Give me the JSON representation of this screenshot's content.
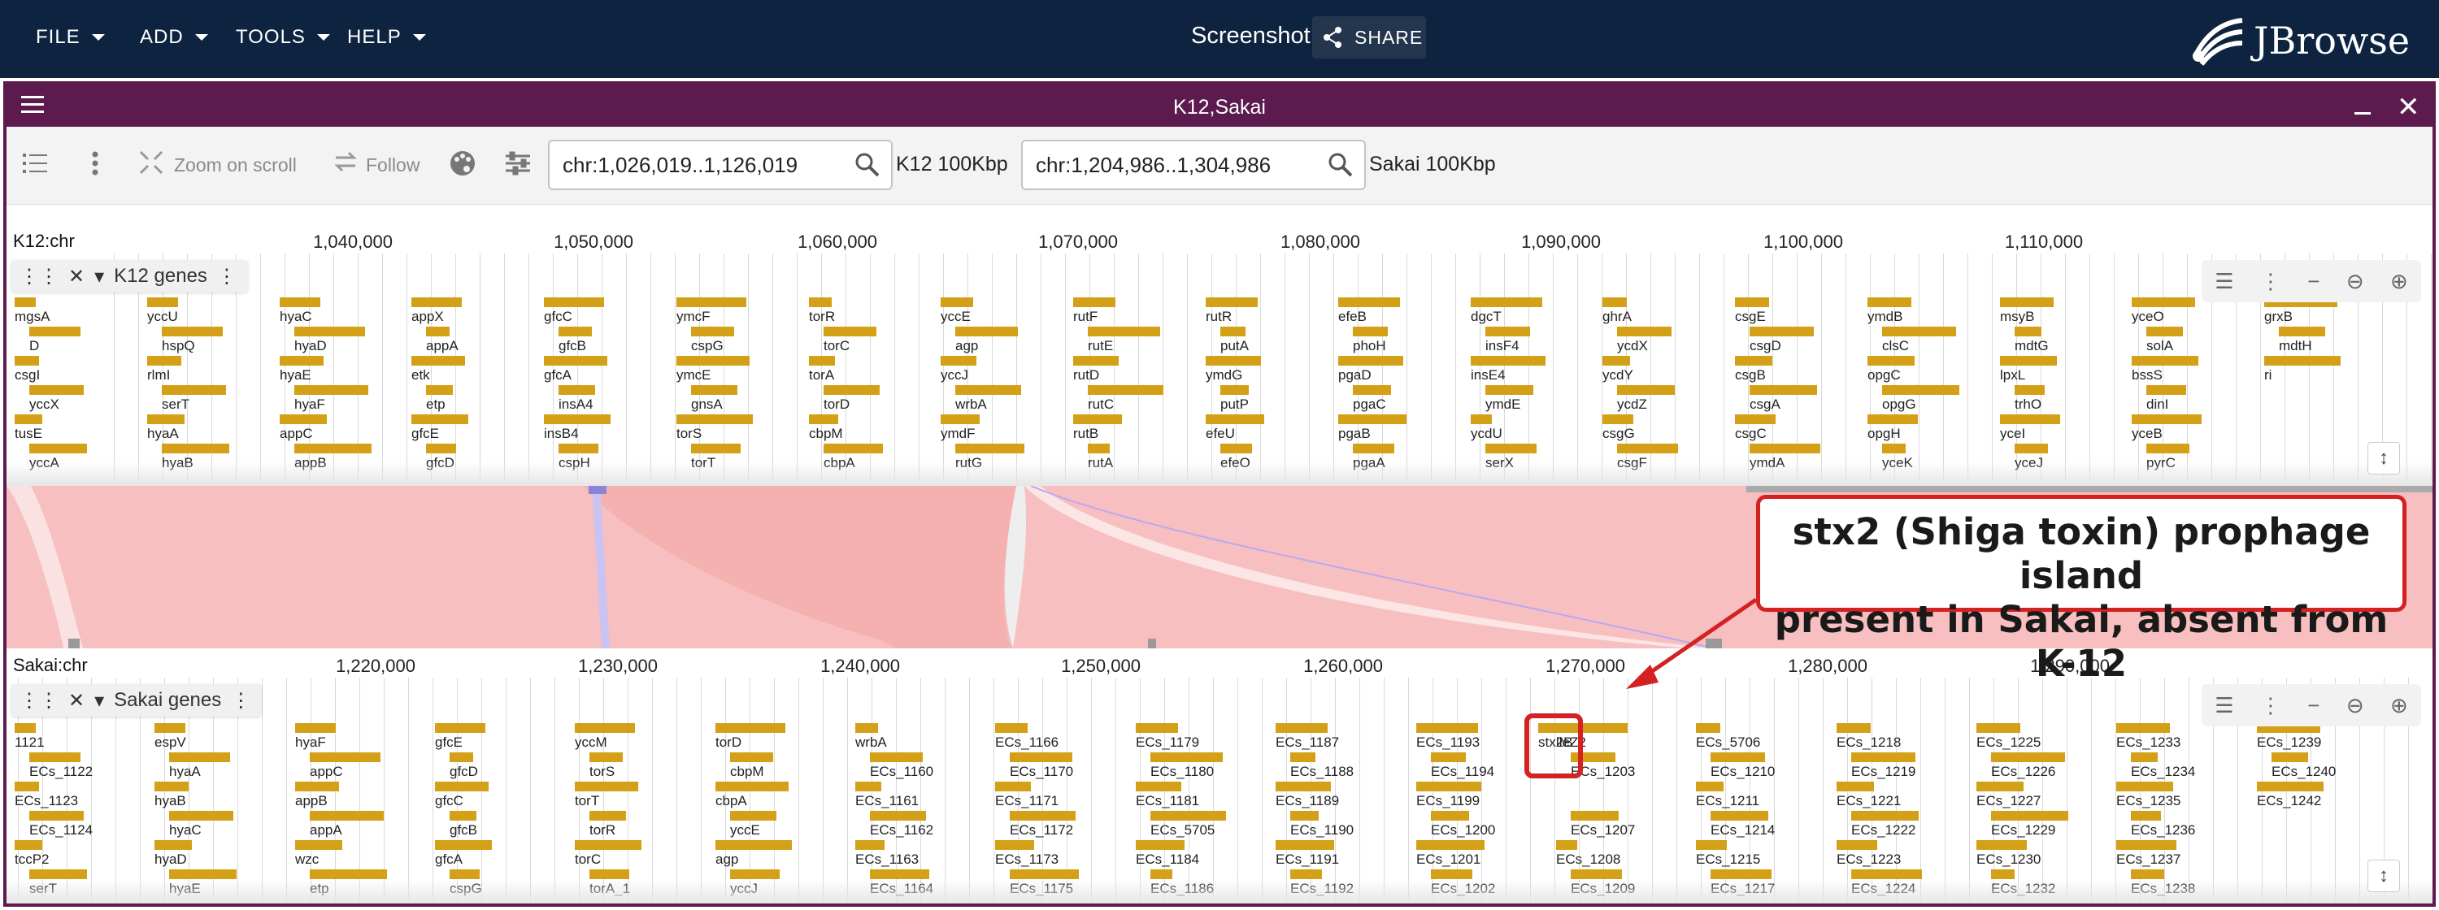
{
  "appbar": {
    "menus": [
      "FILE",
      "ADD",
      "TOOLS",
      "HELP"
    ],
    "session_title": "Screenshot",
    "share_label": "SHARE",
    "logo_text": "JBrowse"
  },
  "view": {
    "title": "K12,Sakai",
    "toolbar": {
      "zoom_on_scroll": "Zoom on scroll",
      "follow": "Follow",
      "top_location": "chr:1,026,019..1,126,019",
      "top_assembly": "K12 100Kbp",
      "bottom_location": "chr:1,204,986..1,304,986",
      "bottom_assembly": "Sakai 100Kbp"
    }
  },
  "top_ruler": {
    "name": "K12:chr",
    "ticks": [
      "1,040,000",
      "1,050,000",
      "1,060,000",
      "1,070,000",
      "1,080,000",
      "1,090,000",
      "1,100,000",
      "1,110,000"
    ]
  },
  "top_track": {
    "label": "K12 genes",
    "genes": [
      "mgsA",
      "D",
      "csgI",
      "yccX",
      "tusE",
      "yccA",
      "yccU",
      "hspQ",
      "rlmI",
      "serT",
      "hyaA",
      "hyaB",
      "hyaC",
      "hyaD",
      "hyaE",
      "hyaF",
      "appC",
      "appB",
      "appX",
      "appA",
      "etk",
      "etp",
      "gfcE",
      "gfcD",
      "gfcC",
      "gfcB",
      "gfcA",
      "insA4",
      "insB4",
      "cspH",
      "ymcF",
      "cspG",
      "ymcE",
      "gnsA",
      "torS",
      "torT",
      "torR",
      "torC",
      "torA",
      "torD",
      "cbpM",
      "cbpA",
      "yccE",
      "agp",
      "yccJ",
      "wrbA",
      "ymdF",
      "rutG",
      "rutF",
      "rutE",
      "rutD",
      "rutC",
      "rutB",
      "rutA",
      "rutR",
      "putA",
      "ymdG",
      "putP",
      "efeU",
      "efeO",
      "efeB",
      "phoH",
      "pgaD",
      "pgaC",
      "pgaB",
      "pgaA",
      "dgcT",
      "insF4",
      "insE4",
      "ymdE",
      "ycdU",
      "serX",
      "ghrA",
      "ycdX",
      "ycdY",
      "ycdZ",
      "csgG",
      "csgF",
      "csgE",
      "csgD",
      "csgB",
      "csgA",
      "csgC",
      "ymdA",
      "ymdB",
      "clsC",
      "opgC",
      "opgG",
      "opgH",
      "yceK",
      "msyB",
      "mdtG",
      "lpxL",
      "trhO",
      "yceI",
      "yceJ",
      "yceO",
      "solA",
      "bssS",
      "dinI",
      "yceB",
      "pyrC",
      "grxB",
      "mdtH",
      "ri"
    ]
  },
  "bottom_ruler": {
    "name": "Sakai:chr",
    "ticks": [
      "1,220,000",
      "1,230,000",
      "1,240,000",
      "1,250,000",
      "1,260,000",
      "1,270,000",
      "1,280,000",
      "1,290,000"
    ]
  },
  "bottom_track": {
    "label": "Sakai genes",
    "genes": [
      "1121",
      "ECs_1122",
      "ECs_1123",
      "ECs_1124",
      "tccP2",
      "serT",
      "espV",
      "hyaA",
      "hyaB",
      "hyaC",
      "hyaD",
      "hyaE",
      "hyaF",
      "appC",
      "appB",
      "appA",
      "wzc",
      "etp",
      "gfcE",
      "gfcD",
      "gfcC",
      "gfcB",
      "gfcA",
      "cspG",
      "yccM",
      "torS",
      "torT",
      "torR",
      "torC",
      "torA_1",
      "torD",
      "cbpM",
      "cbpA",
      "yccE",
      "agp",
      "yccJ",
      "wrbA",
      "ECs_1160",
      "ECs_1161",
      "ECs_1162",
      "ECs_1163",
      "ECs_1164",
      "ECs_1166",
      "ECs_1170",
      "ECs_1171",
      "ECs_1172",
      "ECs_1173",
      "ECs_1175",
      "ECs_1179",
      "ECs_1180",
      "ECs_1181",
      "ECs_5705",
      "ECs_1184",
      "ECs_1186",
      "ECs_1187",
      "ECs_1188",
      "ECs_1189",
      "ECs_1190",
      "ECs_1191",
      "ECs_1192",
      "ECs_1193",
      "ECs_1194",
      "ECs_1199",
      "ECs_1200",
      "ECs_1201",
      "ECs_1202",
      "ileZ2",
      "ECs_1203",
      "stx2B",
      "ECs_1207",
      "ECs_1208",
      "ECs_1209",
      "ECs_5706",
      "ECs_1210",
      "ECs_1211",
      "ECs_1214",
      "ECs_1215",
      "ECs_1217",
      "ECs_1218",
      "ECs_1219",
      "ECs_1221",
      "ECs_1222",
      "ECs_1223",
      "ECs_1224",
      "ECs_1225",
      "ECs_1226",
      "ECs_1227",
      "ECs_1229",
      "ECs_1230",
      "ECs_1232",
      "ECs_1233",
      "ECs_1234",
      "ECs_1235",
      "ECs_1236",
      "ECs_1237",
      "ECs_1238",
      "ECs_1239",
      "ECs_1240",
      "ECs_1242"
    ]
  },
  "annotation": {
    "line1": "stx2 (Shiga toxin) prophage island",
    "line2": "present in Sakai, absent from K-12"
  },
  "colors": {
    "appbar": "#0d233f",
    "view_header": "#5c1a4f",
    "gene": "#d4a017",
    "synteny_fill": "#f7b9b9",
    "synteny_inversion": "#c9c3f2",
    "annotation": "#d42121"
  }
}
